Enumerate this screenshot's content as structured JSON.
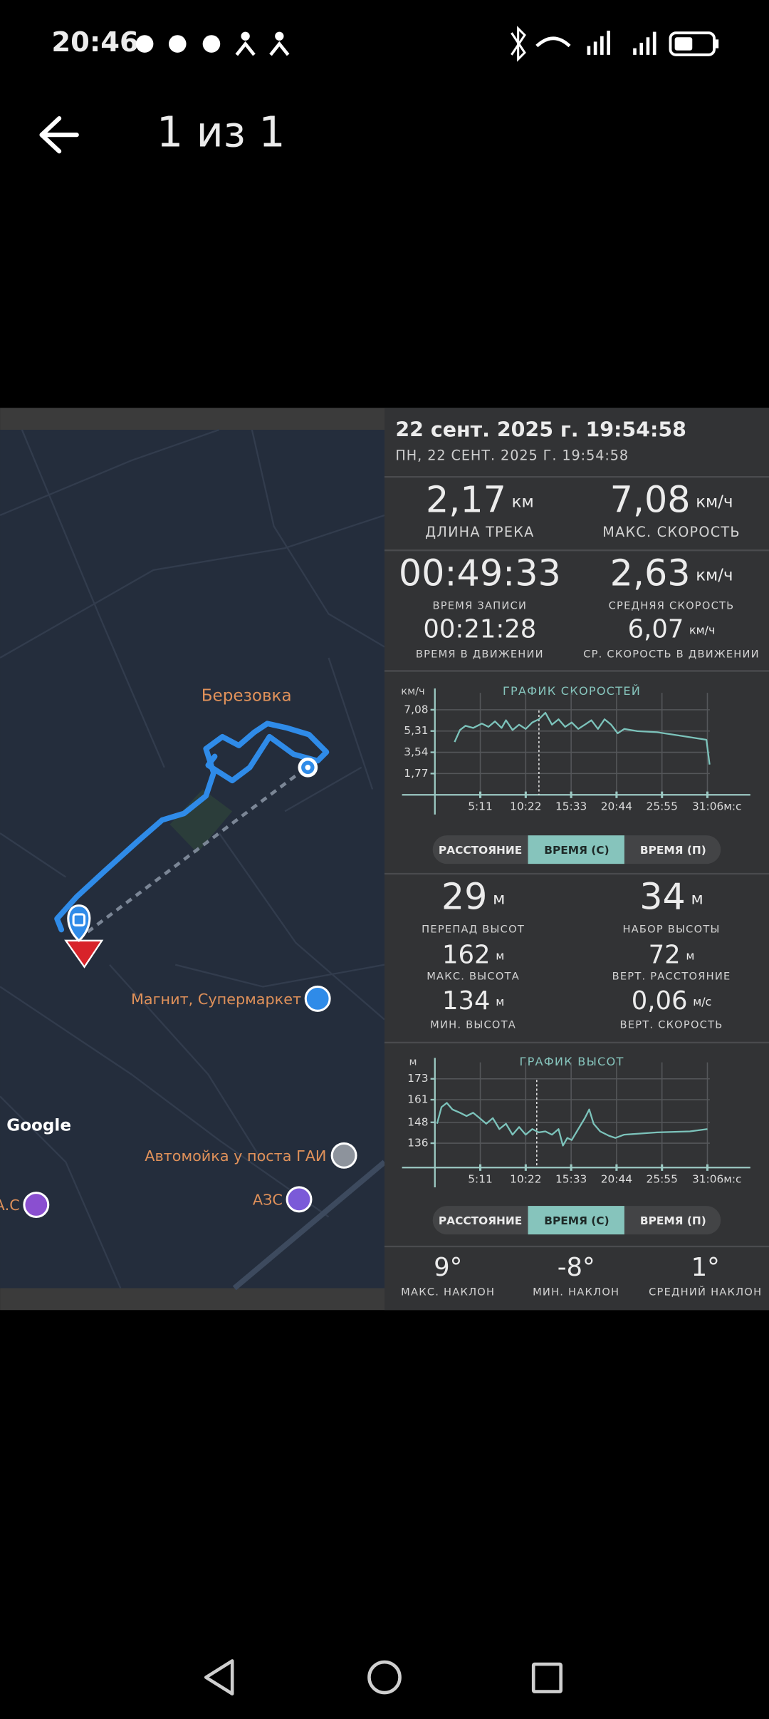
{
  "status_bar": {
    "time": "20:46"
  },
  "header": {
    "title": "1 из 1"
  },
  "map": {
    "labels": [
      "Березовка",
      "Магнит, Супермаркет",
      "Автомойка у поста ГАИ",
      "АЗС",
      "А.С"
    ],
    "attribution": "Google"
  },
  "panel": {
    "date_title": "22 сент. 2025 г. 19:54:58",
    "date_subtitle": "ПН, 22 СЕНТ. 2025 Г. 19:54:58",
    "track_stats": [
      {
        "value": "2,17",
        "unit": "км",
        "label": "ДЛИНА ТРЕКА"
      },
      {
        "value": "7,08",
        "unit": "км/ч",
        "label": "МАКС. СКОРОСТЬ"
      },
      {
        "value": "00:49:33",
        "label": "ВРЕМЯ ЗАПИСИ"
      },
      {
        "value": "2,63",
        "unit": "км/ч",
        "label": "СРЕДНЯЯ СКОРОСТЬ"
      },
      {
        "value": "00:21:28",
        "label": "ВРЕМЯ В ДВИЖЕНИИ"
      },
      {
        "value": "6,07",
        "unit": "км/ч",
        "label": "СР. СКОРОСТЬ В ДВИЖЕНИИ"
      }
    ],
    "altitude_stats": [
      {
        "value": "29",
        "unit": "м",
        "label": "ПЕРЕПАД ВЫСОТ"
      },
      {
        "value": "34",
        "unit": "м",
        "label": "НАБОР ВЫСОТЫ"
      },
      {
        "value": "162",
        "unit": "м",
        "label": "МАКС. ВЫСОТА"
      },
      {
        "value": "72",
        "unit": "м",
        "label": "ВЕРТ. РАССТОЯНИЕ"
      },
      {
        "value": "134",
        "unit": "м",
        "label": "МИН. ВЫСОТА"
      },
      {
        "value": "0,06",
        "unit": "м/с",
        "label": "ВЕРТ. СКОРОСТЬ"
      }
    ],
    "slope_stats": [
      {
        "value": "9°",
        "label": "МАКС. НАКЛОН"
      },
      {
        "value": "-8°",
        "label": "МИН. НАКЛОН"
      },
      {
        "value": "1°",
        "label": "СРЕДНИЙ НАКЛОН"
      }
    ],
    "toggles": [
      [
        "РАССТОЯНИЕ",
        "ВРЕМЯ (С)",
        "ВРЕМЯ (П)"
      ],
      [
        "РАССТОЯНИЕ",
        "ВРЕМЯ (С)",
        "ВРЕМЯ (П)"
      ]
    ]
  },
  "chart_data": [
    {
      "type": "line",
      "title": "ГРАФИК СКОРОСТЕЙ",
      "ylabel": "км/ч",
      "color": "#7cc3bb",
      "grid": true,
      "x": [
        135,
        172,
        210,
        262,
        322,
        367,
        412,
        457,
        487,
        532,
        577,
        622,
        667,
        712,
        757,
        802,
        847,
        892,
        937,
        982,
        1027,
        1072,
        1117,
        1162,
        1207,
        1252,
        1297,
        1386,
        1521,
        1671,
        1859,
        1881
      ],
      "values": [
        4.4,
        5.39,
        5.75,
        5.57,
        5.93,
        5.66,
        6.11,
        5.57,
        6.2,
        5.39,
        5.84,
        5.48,
        6.02,
        6.29,
        6.83,
        5.84,
        6.29,
        5.66,
        6.02,
        5.48,
        5.84,
        6.2,
        5.48,
        6.29,
        5.84,
        5.12,
        5.48,
        5.3,
        5.21,
        4.94,
        4.58,
        2.52
      ],
      "xlim": [
        0,
        2160
      ],
      "ylim": [
        0,
        8.85
      ],
      "xticks": [
        {
          "value": 311,
          "label": "5:11"
        },
        {
          "value": 622,
          "label": "10:22"
        },
        {
          "value": 933,
          "label": "15:33"
        },
        {
          "value": 1244,
          "label": "20:44"
        },
        {
          "value": 1555,
          "label": "25:55"
        },
        {
          "value": 1866,
          "label": "31:06м:с"
        }
      ],
      "yticks": [
        {
          "value": 1.77,
          "label": "1,77"
        },
        {
          "value": 3.54,
          "label": "3,54"
        },
        {
          "value": 5.31,
          "label": "5,31"
        },
        {
          "value": 7.08,
          "label": "7,08"
        }
      ]
    },
    {
      "type": "line",
      "title": "ГРАФИК ВЫСОТ",
      "ylabel": "м",
      "color": "#7cc3bb",
      "grid": true,
      "x": [
        15,
        45,
        82,
        120,
        172,
        217,
        262,
        307,
        352,
        397,
        442,
        487,
        532,
        577,
        622,
        667,
        712,
        757,
        802,
        847,
        877,
        907,
        937,
        982,
        1027,
        1057,
        1087,
        1132,
        1192,
        1236,
        1296,
        1521,
        1746,
        1866
      ],
      "values": [
        147.2,
        156.7,
        159.2,
        155.4,
        153.5,
        151.6,
        153.5,
        150.4,
        147.2,
        150.4,
        144.1,
        147.2,
        140.9,
        145.3,
        140.9,
        144.1,
        142.2,
        142.8,
        140.9,
        144.1,
        134.6,
        139.0,
        137.8,
        144.1,
        150.4,
        155.4,
        147.2,
        142.8,
        140.3,
        139.0,
        140.9,
        142.2,
        142.8,
        144.1
      ],
      "xlim": [
        0,
        2160
      ],
      "ylim": [
        122,
        185
      ],
      "xticks": [
        {
          "value": 311,
          "label": "5:11"
        },
        {
          "value": 622,
          "label": "10:22"
        },
        {
          "value": 933,
          "label": "15:33"
        },
        {
          "value": 1244,
          "label": "20:44"
        },
        {
          "value": 1555,
          "label": "25:55"
        },
        {
          "value": 1866,
          "label": "31:06м:с"
        }
      ],
      "yticks": [
        136,
        148,
        161,
        173
      ]
    }
  ]
}
